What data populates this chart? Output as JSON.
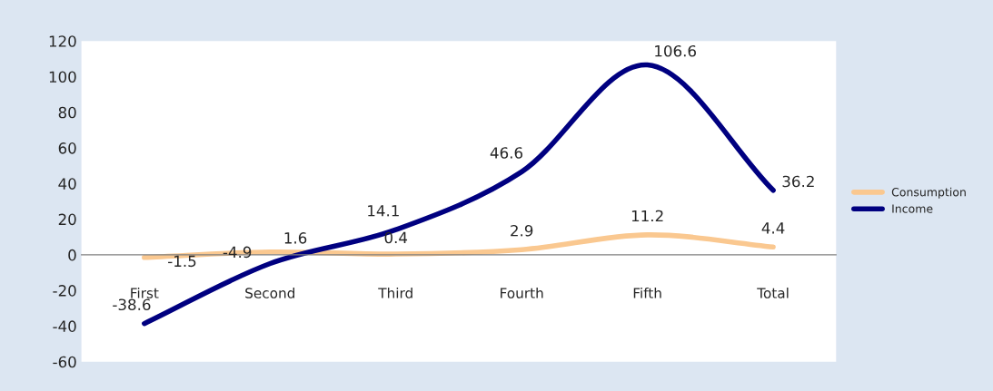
{
  "chart_data": {
    "type": "line",
    "categories": [
      "First",
      "Second",
      "Third",
      "Fourth",
      "Fifth",
      "Total"
    ],
    "series": [
      {
        "name": "Consumption",
        "color": "#fac890",
        "values": [
          -1.5,
          1.6,
          0.4,
          2.9,
          11.2,
          4.4
        ]
      },
      {
        "name": "Income",
        "color": "#000080",
        "values": [
          -38.6,
          -4.9,
          14.1,
          46.6,
          106.6,
          36.2
        ]
      }
    ],
    "ylim": [
      -60,
      120
    ],
    "yticks": [
      -60,
      -40,
      -20,
      0,
      20,
      40,
      60,
      80,
      100,
      120
    ],
    "data_labels": true,
    "legend": "right",
    "grid": false,
    "marker": "none",
    "line_style": "solid"
  }
}
